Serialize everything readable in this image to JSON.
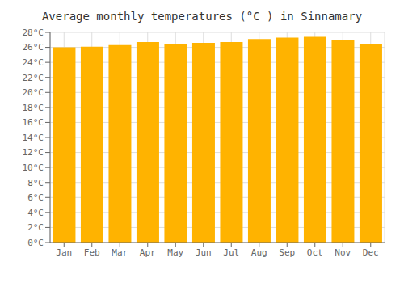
{
  "chart_data": {
    "type": "bar",
    "title": "Average monthly temperatures (°C ) in Sinnamary",
    "categories": [
      "Jan",
      "Feb",
      "Mar",
      "Apr",
      "May",
      "Jun",
      "Jul",
      "Aug",
      "Sep",
      "Oct",
      "Nov",
      "Dec"
    ],
    "values": [
      26.0,
      26.1,
      26.3,
      26.7,
      26.5,
      26.6,
      26.7,
      27.1,
      27.3,
      27.4,
      27.0,
      26.5
    ],
    "color": "#FFB300",
    "ylim": [
      0,
      28
    ],
    "yticks": [
      {
        "value": 0,
        "label": "0°C"
      },
      {
        "value": 2,
        "label": "2°C"
      },
      {
        "value": 4,
        "label": "4°C"
      },
      {
        "value": 6,
        "label": "6°C"
      },
      {
        "value": 8,
        "label": "8°C"
      },
      {
        "value": 10,
        "label": "10°C"
      },
      {
        "value": 12,
        "label": "12°C"
      },
      {
        "value": 14,
        "label": "14°C"
      },
      {
        "value": 16,
        "label": "16°C"
      },
      {
        "value": 18,
        "label": "18°C"
      },
      {
        "value": 20,
        "label": "20°C"
      },
      {
        "value": 22,
        "label": "22°C"
      },
      {
        "value": 24,
        "label": "24°C"
      },
      {
        "value": 26,
        "label": "26°C"
      },
      {
        "value": 28,
        "label": "28°C"
      }
    ],
    "grid": true
  }
}
